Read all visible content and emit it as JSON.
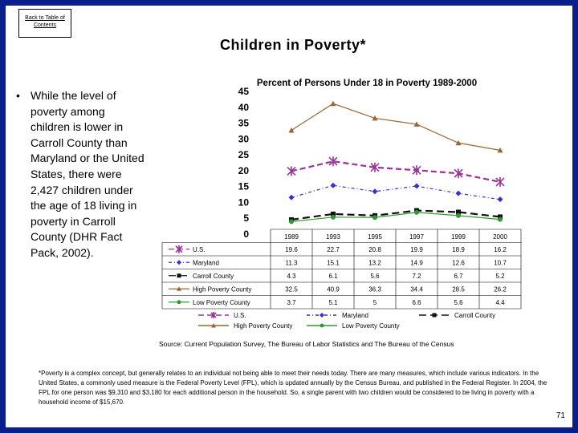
{
  "back_link": "Back to Table of Contents",
  "slide_title": "Children in Poverty*",
  "bullet_text": "While the level of poverty among children is lower in Carroll County than Maryland or the United States, there were 2,427 children under the age of 18 living in poverty in Carroll County (DHR Fact Pack, 2002).",
  "source": "Source: Current Population Survey, The Bureau of Labor Statistics and The Bureau of the Census",
  "footnote": "*Poverty is a complex concept, but generally relates to an individual not being able to meet their needs today.  There are many measures, which include various indicators. In the United States, a commonly used measure is the Federal Poverty Level (FPL), which is updated annually by the Census Bureau, and published in the Federal Register.  In 2004, the FPL for one person was $9,310 and $3,180 for each additional person in the household.  So, a single parent with two children would be considered to be living in poverty with a household income of $15,670.",
  "page_number": "71",
  "chart_data": {
    "type": "line",
    "title": "Percent of Persons Under 18 in Poverty 1989-2000",
    "categories": [
      "1989",
      "1993",
      "1995",
      "1997",
      "1999",
      "2000"
    ],
    "ylim": [
      0,
      45
    ],
    "yticks": [
      0,
      5,
      10,
      15,
      20,
      25,
      30,
      35,
      40,
      45
    ],
    "series": [
      {
        "name": "U.S.",
        "values": [
          19.6,
          22.7,
          20.8,
          19.9,
          18.9,
          16.2
        ],
        "color": "#993399",
        "marker": "star",
        "dash": "dash"
      },
      {
        "name": "Maryland",
        "values": [
          11.3,
          15.1,
          13.2,
          14.9,
          12.6,
          10.7
        ],
        "color": "#3333cc",
        "marker": "diamond",
        "dash": "dashdot"
      },
      {
        "name": "Carroll County",
        "values": [
          4.3,
          6.1,
          5.6,
          7.2,
          6.7,
          5.2
        ],
        "color": "#111111",
        "marker": "square",
        "dash": "bigdash"
      },
      {
        "name": "High Poverty County",
        "values": [
          32.5,
          40.9,
          36.3,
          34.4,
          28.5,
          26.2
        ],
        "color": "#996633",
        "marker": "triangle",
        "dash": "solid"
      },
      {
        "name": "Low Poverty County",
        "values": [
          3.7,
          5.1,
          5,
          6.6,
          5.6,
          4.4
        ],
        "color": "#339933",
        "marker": "circle",
        "dash": "solid"
      }
    ]
  }
}
